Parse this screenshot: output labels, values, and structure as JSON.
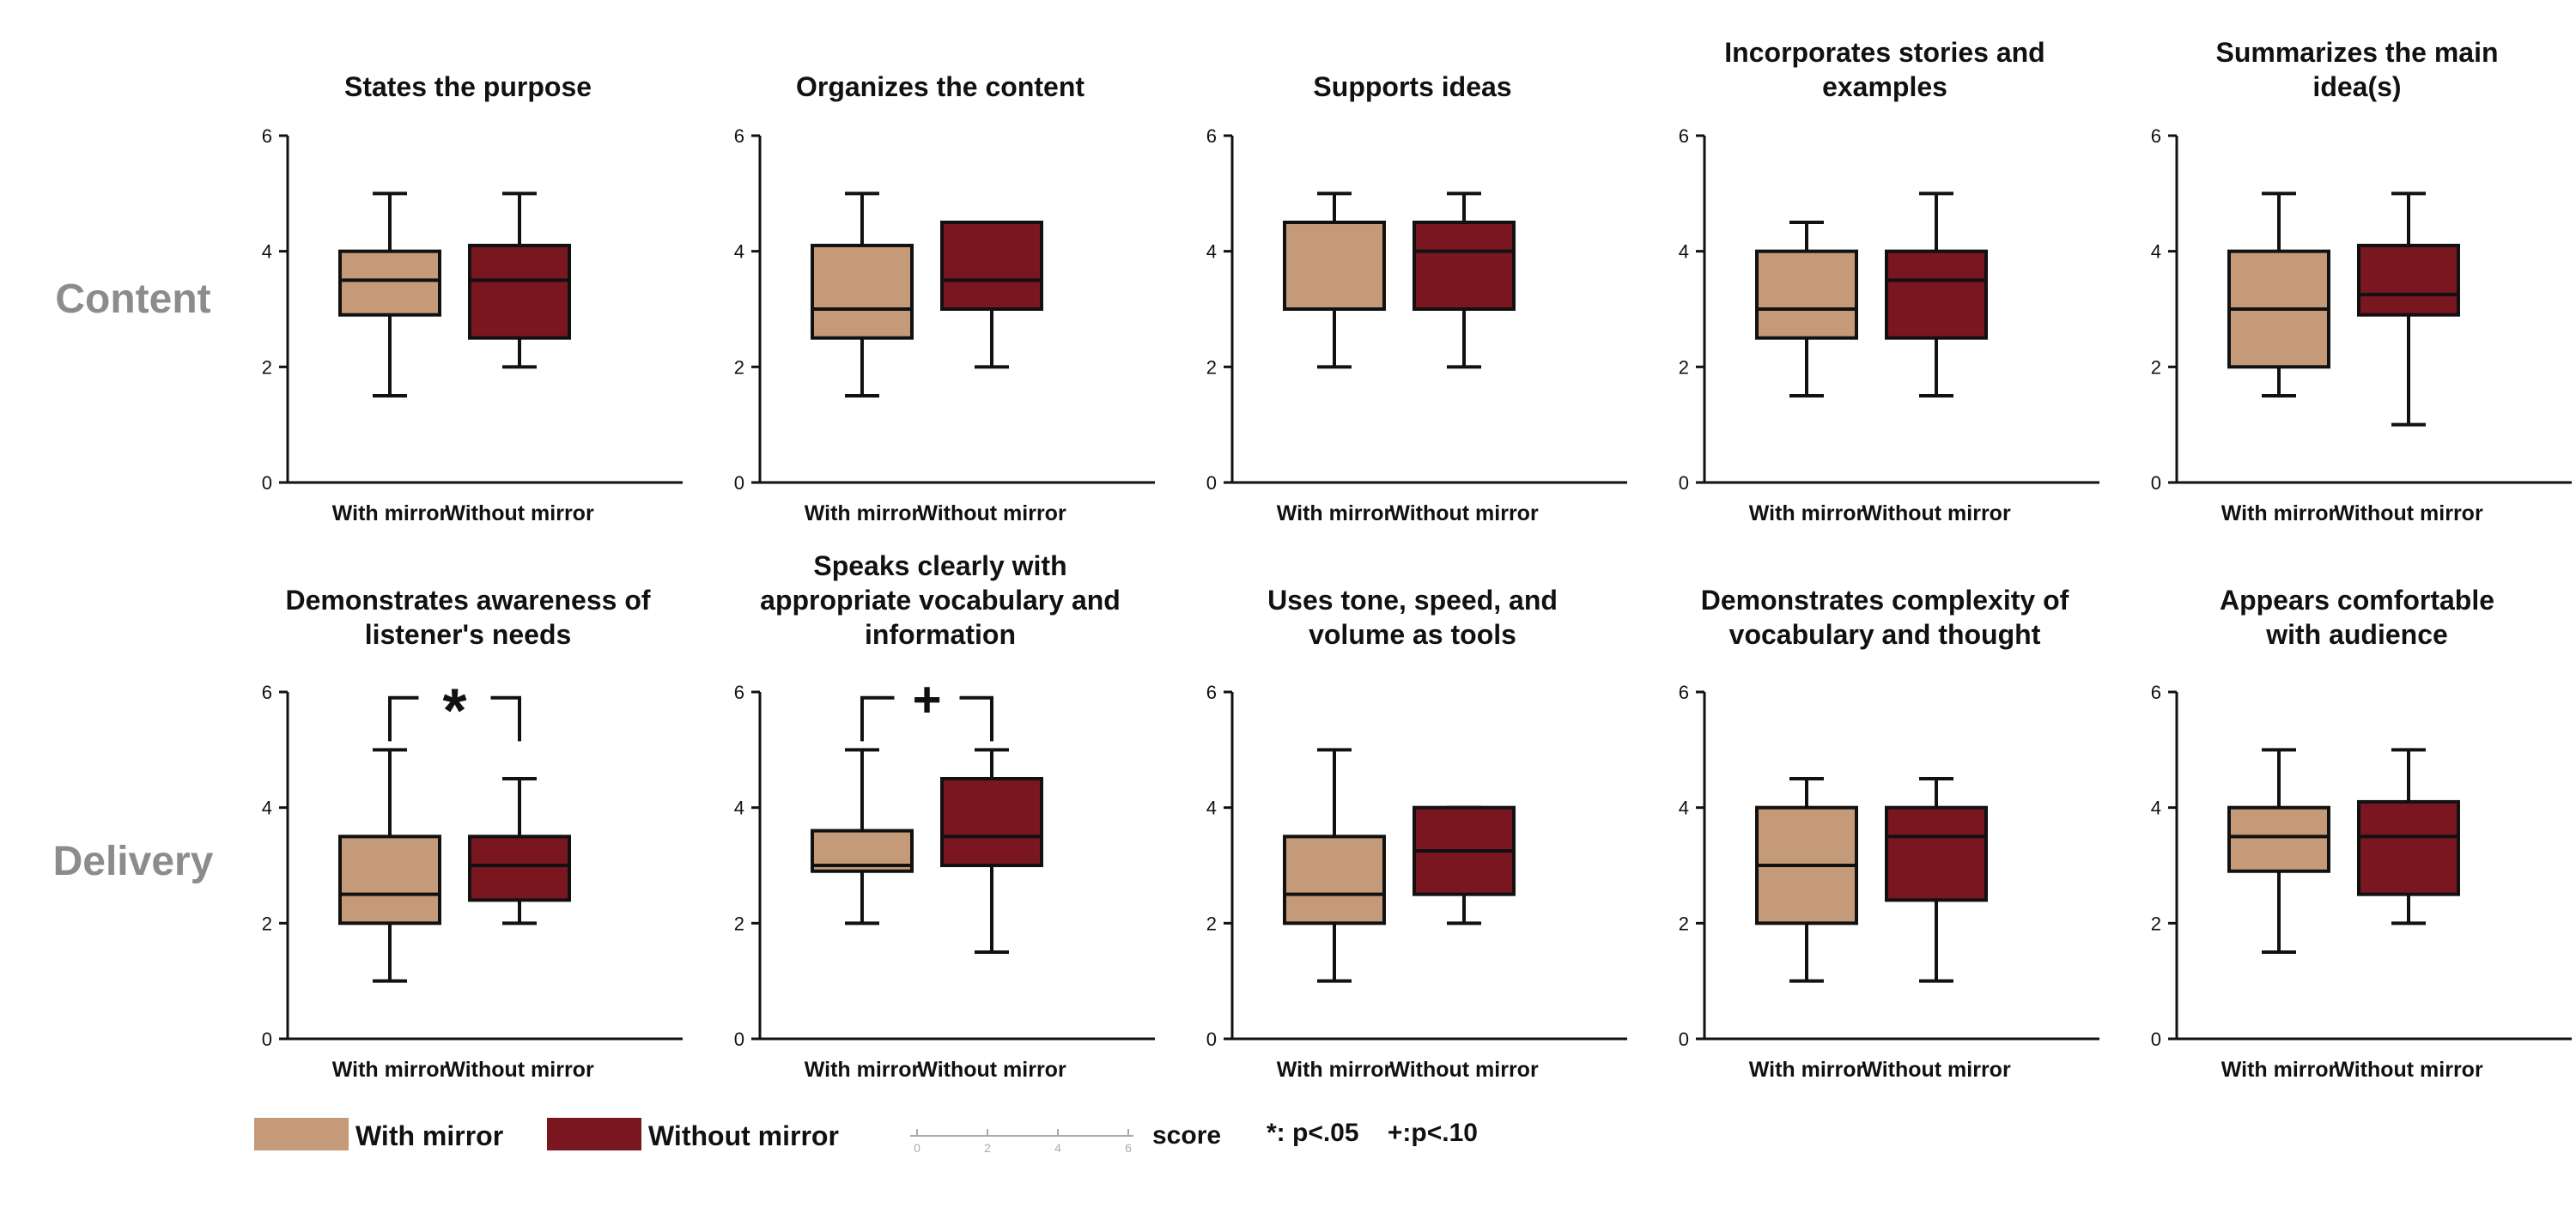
{
  "row_labels": [
    "Content",
    "Delivery"
  ],
  "group_names": [
    "With mirror",
    "Without mirror"
  ],
  "colors": {
    "with": "#c49a78",
    "without": "#7a1620",
    "axis": "#111111",
    "row_label": "#8c8c8c"
  },
  "legend": {
    "with_label": "With mirror",
    "without_label": "Without mirror",
    "score_label": "score",
    "scale_ticks": [
      "0",
      "2",
      "4",
      "6"
    ],
    "sig_note": "*: p<.05    +:p<.10"
  },
  "chart_data": [
    {
      "type": "box",
      "row": "Content",
      "title": [
        "States the purpose"
      ],
      "ylim": [
        0,
        6
      ],
      "yticks": [
        "0",
        "2",
        "4",
        "6"
      ],
      "categories": [
        "With mirror",
        "Without mirror"
      ],
      "boxes": [
        {
          "min": 1.5,
          "q1": 2.9,
          "median": 3.5,
          "q3": 4.0,
          "max": 5.0
        },
        {
          "min": 2.0,
          "q1": 2.5,
          "median": 3.5,
          "q3": 4.1,
          "max": 5.0
        }
      ],
      "significance": ""
    },
    {
      "type": "box",
      "row": "Content",
      "title": [
        "Organizes the content"
      ],
      "ylim": [
        0,
        6
      ],
      "yticks": [
        "0",
        "2",
        "4",
        "6"
      ],
      "categories": [
        "With mirror",
        "Without mirror"
      ],
      "boxes": [
        {
          "min": 1.5,
          "q1": 2.5,
          "median": 3.0,
          "q3": 4.1,
          "max": 5.0
        },
        {
          "min": 2.0,
          "q1": 3.0,
          "median": 3.5,
          "q3": 4.5,
          "max": 4.5
        }
      ],
      "significance": ""
    },
    {
      "type": "box",
      "row": "Content",
      "title": [
        "Supports ideas"
      ],
      "ylim": [
        0,
        6
      ],
      "yticks": [
        "0",
        "2",
        "4",
        "6"
      ],
      "categories": [
        "With mirror",
        "Without mirror"
      ],
      "boxes": [
        {
          "min": 2.0,
          "q1": 3.0,
          "median": 3.0,
          "q3": 4.5,
          "max": 5.0
        },
        {
          "min": 2.0,
          "q1": 3.0,
          "median": 4.0,
          "q3": 4.5,
          "max": 5.0
        }
      ],
      "significance": ""
    },
    {
      "type": "box",
      "row": "Content",
      "title": [
        "Incorporates stories and",
        "examples"
      ],
      "ylim": [
        0,
        6
      ],
      "yticks": [
        "0",
        "2",
        "4",
        "6"
      ],
      "categories": [
        "With mirror",
        "Without mirror"
      ],
      "boxes": [
        {
          "min": 1.5,
          "q1": 2.5,
          "median": 3.0,
          "q3": 4.0,
          "max": 4.5
        },
        {
          "min": 1.5,
          "q1": 2.5,
          "median": 3.5,
          "q3": 4.0,
          "max": 5.0
        }
      ],
      "significance": ""
    },
    {
      "type": "box",
      "row": "Content",
      "title": [
        "Summarizes the main",
        "idea(s)"
      ],
      "ylim": [
        0,
        6
      ],
      "yticks": [
        "0",
        "2",
        "4",
        "6"
      ],
      "categories": [
        "With mirror",
        "Without mirror"
      ],
      "boxes": [
        {
          "min": 1.5,
          "q1": 2.0,
          "median": 3.0,
          "q3": 4.0,
          "max": 5.0
        },
        {
          "min": 1.0,
          "q1": 2.9,
          "median": 3.25,
          "q3": 4.1,
          "max": 5.0
        }
      ],
      "significance": ""
    },
    {
      "type": "box",
      "row": "Delivery",
      "title": [
        "Demonstrates awareness of",
        "listener's needs"
      ],
      "ylim": [
        0,
        6
      ],
      "yticks": [
        "0",
        "2",
        "4",
        "6"
      ],
      "categories": [
        "With mirror",
        "Without mirror"
      ],
      "boxes": [
        {
          "min": 1.0,
          "q1": 2.0,
          "median": 2.5,
          "q3": 3.5,
          "max": 5.0
        },
        {
          "min": 2.0,
          "q1": 2.4,
          "median": 3.0,
          "q3": 3.5,
          "max": 4.5
        }
      ],
      "significance": "*"
    },
    {
      "type": "box",
      "row": "Delivery",
      "title": [
        "Speaks clearly with",
        "appropriate vocabulary and",
        "information"
      ],
      "ylim": [
        0,
        6
      ],
      "yticks": [
        "0",
        "2",
        "4",
        "6"
      ],
      "categories": [
        "With mirror",
        "Without mirror"
      ],
      "boxes": [
        {
          "min": 2.0,
          "q1": 2.9,
          "median": 3.0,
          "q3": 3.6,
          "max": 5.0
        },
        {
          "min": 1.5,
          "q1": 3.0,
          "median": 3.5,
          "q3": 4.5,
          "max": 5.0
        }
      ],
      "significance": "+"
    },
    {
      "type": "box",
      "row": "Delivery",
      "title": [
        "Uses tone, speed, and",
        "volume as tools"
      ],
      "ylim": [
        0,
        6
      ],
      "yticks": [
        "0",
        "2",
        "4",
        "6"
      ],
      "categories": [
        "With mirror",
        "Without mirror"
      ],
      "boxes": [
        {
          "min": 1.0,
          "q1": 2.0,
          "median": 2.5,
          "q3": 3.5,
          "max": 5.0
        },
        {
          "min": 2.0,
          "q1": 2.5,
          "median": 3.25,
          "q3": 4.0,
          "max": 4.0
        }
      ],
      "significance": ""
    },
    {
      "type": "box",
      "row": "Delivery",
      "title": [
        "Demonstrates complexity of",
        "vocabulary and thought"
      ],
      "ylim": [
        0,
        6
      ],
      "yticks": [
        "0",
        "2",
        "4",
        "6"
      ],
      "categories": [
        "With mirror",
        "Without mirror"
      ],
      "boxes": [
        {
          "min": 1.0,
          "q1": 2.0,
          "median": 3.0,
          "q3": 4.0,
          "max": 4.5
        },
        {
          "min": 1.0,
          "q1": 2.4,
          "median": 3.5,
          "q3": 4.0,
          "max": 4.5
        }
      ],
      "significance": ""
    },
    {
      "type": "box",
      "row": "Delivery",
      "title": [
        "Appears comfortable",
        "with audience"
      ],
      "ylim": [
        0,
        6
      ],
      "yticks": [
        "0",
        "2",
        "4",
        "6"
      ],
      "categories": [
        "With mirror",
        "Without mirror"
      ],
      "boxes": [
        {
          "min": 1.5,
          "q1": 2.9,
          "median": 3.5,
          "q3": 4.0,
          "max": 5.0
        },
        {
          "min": 2.0,
          "q1": 2.5,
          "median": 3.5,
          "q3": 4.1,
          "max": 5.0
        }
      ],
      "significance": ""
    }
  ]
}
